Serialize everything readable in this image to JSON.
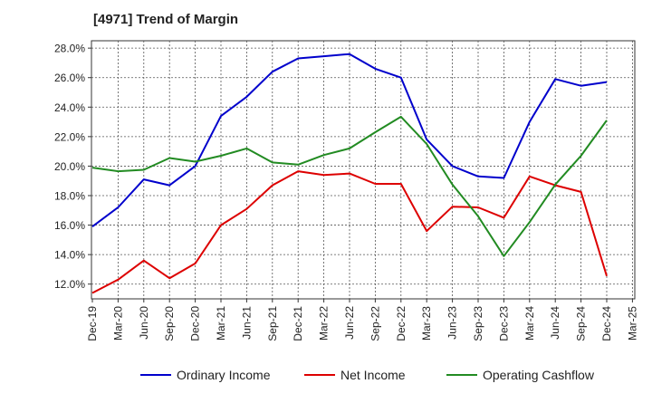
{
  "chart_data": {
    "type": "line",
    "title": "[4971]  Trend of Margin",
    "xlabel": "",
    "ylabel": "",
    "categories": [
      "Dec-19",
      "Mar-20",
      "Jun-20",
      "Sep-20",
      "Dec-20",
      "Mar-21",
      "Jun-21",
      "Sep-21",
      "Dec-21",
      "Mar-22",
      "Jun-22",
      "Sep-22",
      "Dec-22",
      "Mar-23",
      "Jun-23",
      "Sep-23",
      "Dec-23",
      "Mar-24",
      "Jun-24",
      "Sep-24",
      "Dec-24",
      "Mar-25"
    ],
    "ylim": [
      11.0,
      28.5
    ],
    "yticks": [
      12.0,
      14.0,
      16.0,
      18.0,
      20.0,
      22.0,
      24.0,
      26.0,
      28.0
    ],
    "ytick_labels": [
      "12.0%",
      "14.0%",
      "16.0%",
      "18.0%",
      "20.0%",
      "22.0%",
      "24.0%",
      "26.0%",
      "28.0%"
    ],
    "grid": true,
    "legend_position": "bottom",
    "series": [
      {
        "name": "Ordinary Income",
        "color": "#0000cc",
        "values": [
          15.9,
          17.2,
          19.1,
          18.7,
          20.0,
          23.4,
          24.7,
          26.4,
          27.3,
          27.45,
          27.6,
          26.6,
          26.0,
          21.8,
          20.0,
          19.3,
          19.2,
          23.0,
          25.9,
          25.45,
          25.7,
          null
        ]
      },
      {
        "name": "Net Income",
        "color": "#dd0000",
        "values": [
          11.4,
          12.3,
          13.6,
          12.4,
          13.4,
          16.0,
          17.1,
          18.7,
          19.65,
          19.4,
          19.5,
          18.8,
          18.8,
          15.6,
          17.25,
          17.2,
          16.5,
          19.3,
          18.7,
          18.25,
          12.55,
          null
        ]
      },
      {
        "name": "Operating Cashflow",
        "color": "#228b22",
        "values": [
          19.9,
          19.65,
          19.75,
          20.55,
          20.3,
          20.7,
          21.2,
          20.25,
          20.1,
          20.75,
          21.2,
          22.3,
          23.35,
          21.5,
          18.75,
          16.6,
          13.9,
          16.2,
          18.75,
          20.7,
          23.1,
          null
        ]
      }
    ]
  }
}
